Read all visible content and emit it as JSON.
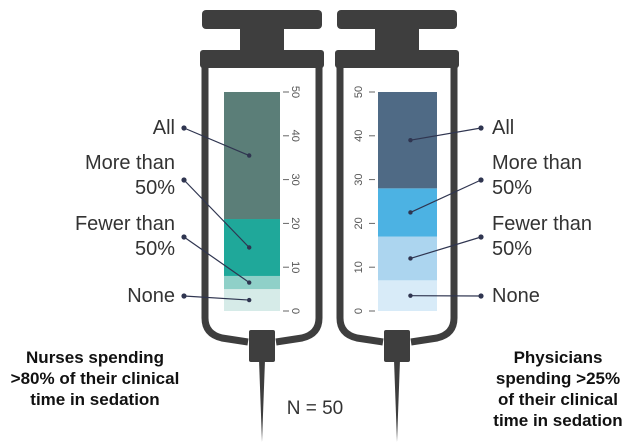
{
  "annotation": "N = 50",
  "chart_data": [
    {
      "type": "stacked-bar",
      "title": "Nurses spending >80% of their clinical time in sedation",
      "series": [
        {
          "name": "None",
          "color": "#d6ebe8",
          "values": [
            5
          ]
        },
        {
          "name": "Fewer than 50%",
          "color": "#8fd0c8",
          "values": [
            3
          ]
        },
        {
          "name": "More than 50%",
          "color": "#1fa89a",
          "values": [
            13
          ]
        },
        {
          "name": "All",
          "color": "#5b7e78",
          "values": [
            29
          ]
        }
      ],
      "ylim": [
        0,
        50
      ],
      "yticks": [
        0,
        10,
        20,
        30,
        40,
        50
      ]
    },
    {
      "type": "stacked-bar",
      "title": "Physicians spending >25% of their clinical time in sedation",
      "series": [
        {
          "name": "None",
          "color": "#d8ebf8",
          "values": [
            7
          ]
        },
        {
          "name": "Fewer than 50%",
          "color": "#acd5ef",
          "values": [
            10
          ]
        },
        {
          "name": "More than 50%",
          "color": "#4cb2e3",
          "values": [
            11
          ]
        },
        {
          "name": "All",
          "color": "#4f6a85",
          "values": [
            22
          ]
        }
      ],
      "ylim": [
        0,
        50
      ],
      "yticks": [
        0,
        10,
        20,
        30,
        40,
        50
      ]
    }
  ]
}
